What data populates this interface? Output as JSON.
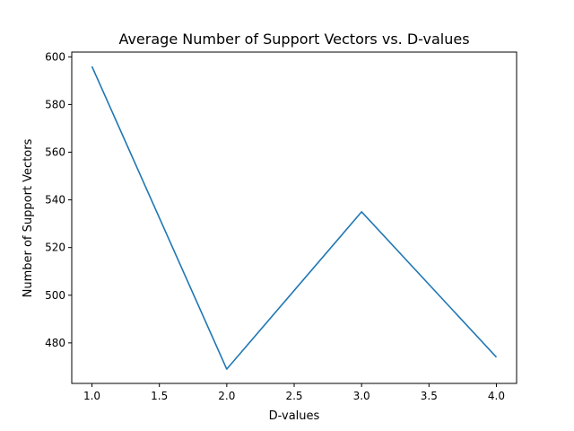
{
  "chart_data": {
    "type": "line",
    "title": "Average Number of Support Vectors vs. D-values",
    "xlabel": "D-values",
    "ylabel": "Number of Support Vectors",
    "xlim": [
      0.85,
      4.15
    ],
    "ylim": [
      463,
      602
    ],
    "xticks": [
      1.0,
      1.5,
      2.0,
      2.5,
      3.0,
      3.5,
      4.0
    ],
    "xtick_labels": [
      "1.0",
      "1.5",
      "2.0",
      "2.5",
      "3.0",
      "3.5",
      "4.0"
    ],
    "yticks": [
      480,
      500,
      520,
      540,
      560,
      580,
      600
    ],
    "ytick_labels": [
      "480",
      "500",
      "520",
      "540",
      "560",
      "580",
      "600"
    ],
    "grid": false,
    "series": [
      {
        "x": [
          1.0,
          2.0,
          3.0,
          4.0
        ],
        "values": [
          596,
          469,
          535,
          474
        ],
        "color": "#1f77b4"
      }
    ]
  }
}
